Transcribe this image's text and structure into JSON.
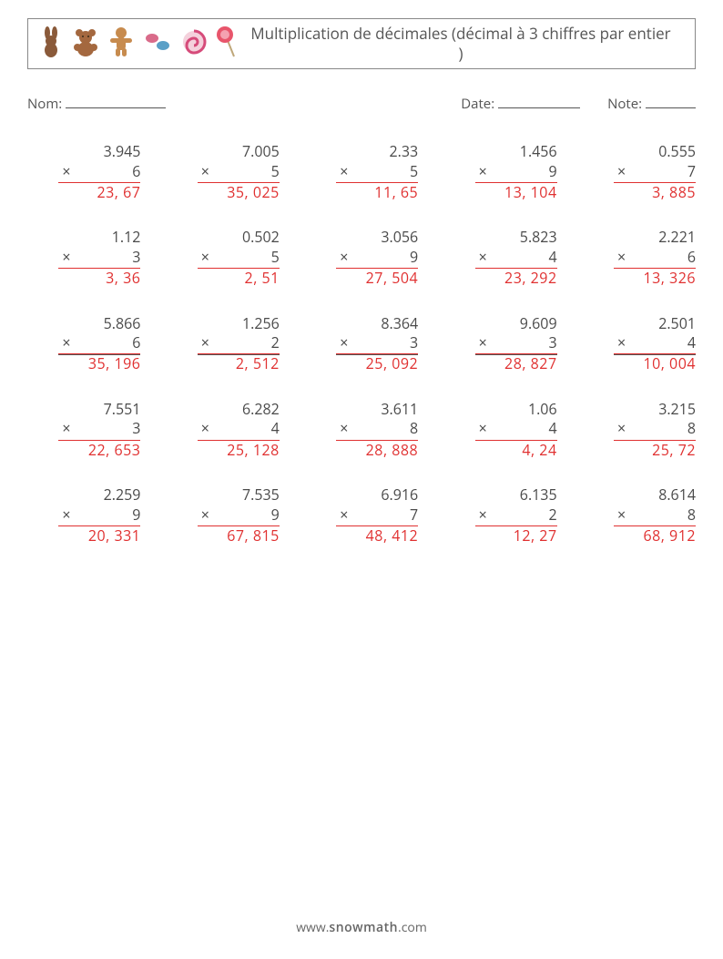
{
  "header": {
    "title": "Multiplication de décimales (décimal à 3 chiffres par entier )",
    "icons": [
      "bunny",
      "teddy",
      "gingerbread",
      "candies",
      "swirl",
      "lollipop"
    ]
  },
  "meta": {
    "name_label": "Nom:",
    "date_label": "Date:",
    "note_label": "Note:"
  },
  "op_symbol": "×",
  "problems": [
    [
      {
        "a": "3.945",
        "b": "6",
        "ans": "23, 67"
      },
      {
        "a": "7.005",
        "b": "5",
        "ans": "35, 025"
      },
      {
        "a": "2.33",
        "b": "5",
        "ans": "11, 65"
      },
      {
        "a": "1.456",
        "b": "9",
        "ans": "13, 104"
      },
      {
        "a": "0.555",
        "b": "7",
        "ans": "3, 885"
      }
    ],
    [
      {
        "a": "1.12",
        "b": "3",
        "ans": "3, 36"
      },
      {
        "a": "0.502",
        "b": "5",
        "ans": "2, 51"
      },
      {
        "a": "3.056",
        "b": "9",
        "ans": "27, 504"
      },
      {
        "a": "5.823",
        "b": "4",
        "ans": "23, 292"
      },
      {
        "a": "2.221",
        "b": "6",
        "ans": "13, 326"
      }
    ],
    [
      {
        "a": "5.866",
        "b": "6",
        "ans": "35, 196"
      },
      {
        "a": "1.256",
        "b": "2",
        "ans": "2, 512"
      },
      {
        "a": "8.364",
        "b": "3",
        "ans": "25, 092"
      },
      {
        "a": "9.609",
        "b": "3",
        "ans": "28, 827"
      },
      {
        "a": "2.501",
        "b": "4",
        "ans": "10, 004"
      }
    ],
    [
      {
        "a": "7.551",
        "b": "3",
        "ans": "22, 653"
      },
      {
        "a": "6.282",
        "b": "4",
        "ans": "25, 128"
      },
      {
        "a": "3.611",
        "b": "8",
        "ans": "28, 888"
      },
      {
        "a": "1.06",
        "b": "4",
        "ans": "4, 24"
      },
      {
        "a": "3.215",
        "b": "8",
        "ans": "25, 72"
      }
    ],
    [
      {
        "a": "2.259",
        "b": "9",
        "ans": "20, 331"
      },
      {
        "a": "7.535",
        "b": "9",
        "ans": "67, 815"
      },
      {
        "a": "6.916",
        "b": "7",
        "ans": "48, 412"
      },
      {
        "a": "6.135",
        "b": "2",
        "ans": "12, 27"
      },
      {
        "a": "8.614",
        "b": "8",
        "ans": "68, 912"
      }
    ]
  ],
  "footer": {
    "prefix": "www.",
    "brand": "snowmath",
    "suffix": ".com"
  },
  "colors": {
    "text": "#4a4a4a",
    "answer": "#e03030",
    "border": "#888888",
    "background": "#ffffff"
  },
  "icon_svgs": {
    "bunny": "<svg width='26' height='34' viewBox='0 0 26 34'><g fill='#8a5a3a'><ellipse cx='9' cy='7' rx='3' ry='7'/><ellipse cx='17' cy='7' rx='3' ry='7'/><circle cx='13' cy='16' r='6'/><ellipse cx='13' cy='26' rx='7' ry='8'/></g></svg>",
    "teddy": "<svg width='30' height='32' viewBox='0 0 30 32'><g fill='#a4683f'><circle cx='8' cy='6' r='4'/><circle cx='22' cy='6' r='4'/><circle cx='15' cy='11' r='7'/><ellipse cx='15' cy='24' rx='9' ry='8'/><circle cx='6' cy='22' r='4'/><circle cx='24' cy='22' r='4'/></g><circle cx='12' cy='10' r='1' fill='#3a2a1a'/><circle cx='18' cy='10' r='1' fill='#3a2a1a'/></svg>",
    "gingerbread": "<svg width='28' height='34' viewBox='0 0 28 34'><g fill='#c78b4e'><circle cx='14' cy='7' r='6'/><rect x='9' y='12' width='10' height='14' rx='4'/><rect x='2' y='13' width='24' height='5' rx='2.5'/><rect x='8' y='24' width='5' height='9' rx='2.5'/><rect x='15' y='24' width='5' height='9' rx='2.5'/></g></svg>",
    "candies": "<svg width='32' height='28' viewBox='0 0 32 28'><ellipse cx='10' cy='10' rx='7' ry='5' fill='#d96b8a'/><ellipse cx='22' cy='18' rx='7' ry='5' fill='#5aa0c7'/></svg>",
    "swirl": "<svg width='28' height='28' viewBox='0 0 28 28'><circle cx='14' cy='14' r='12' fill='#f4d1dc'/><path d='M14 2 a12 12 0 0 1 0 24 a8 8 0 0 1 0 -16 a4 4 0 0 1 0 8' fill='none' stroke='#d64b7a' stroke-width='3'/></svg>",
    "lollipop": "<svg width='24' height='36' viewBox='0 0 24 36'><line x1='12' y1='14' x2='20' y2='34' stroke='#bfa77a' stroke-width='2'/><circle cx='10' cy='10' r='9' fill='#e8556b'/><circle cx='10' cy='10' r='5' fill='#f4a1b0'/></svg>"
  }
}
